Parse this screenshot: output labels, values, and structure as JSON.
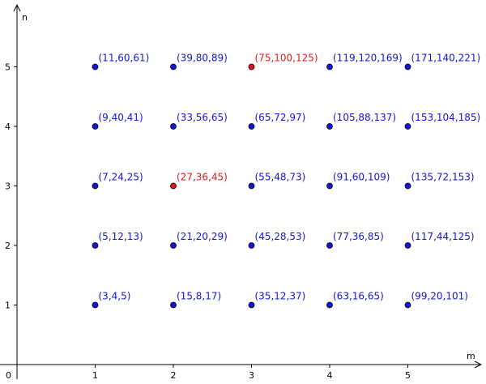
{
  "chart_data": {
    "type": "scatter",
    "title": "",
    "xlabel": "m",
    "ylabel": "n",
    "origin_label": "0",
    "xlim": [
      0,
      6
    ],
    "ylim": [
      0,
      6
    ],
    "x_ticks": [
      "1",
      "2",
      "3",
      "4",
      "5"
    ],
    "y_ticks": [
      "1",
      "2",
      "3",
      "4",
      "5"
    ],
    "grid": false,
    "colors": {
      "normal": "#1414d9",
      "highlight": "#e01818"
    },
    "points": [
      {
        "m": 1,
        "n": 1,
        "label": "(3,4,5)",
        "highlight": false
      },
      {
        "m": 2,
        "n": 1,
        "label": "(15,8,17)",
        "highlight": false
      },
      {
        "m": 3,
        "n": 1,
        "label": "(35,12,37)",
        "highlight": false
      },
      {
        "m": 4,
        "n": 1,
        "label": "(63,16,65)",
        "highlight": false
      },
      {
        "m": 5,
        "n": 1,
        "label": "(99,20,101)",
        "highlight": false
      },
      {
        "m": 1,
        "n": 2,
        "label": "(5,12,13)",
        "highlight": false
      },
      {
        "m": 2,
        "n": 2,
        "label": "(21,20,29)",
        "highlight": false
      },
      {
        "m": 3,
        "n": 2,
        "label": "(45,28,53)",
        "highlight": false
      },
      {
        "m": 4,
        "n": 2,
        "label": "(77,36,85)",
        "highlight": false
      },
      {
        "m": 5,
        "n": 2,
        "label": "(117,44,125)",
        "highlight": false
      },
      {
        "m": 1,
        "n": 3,
        "label": "(7,24,25)",
        "highlight": false
      },
      {
        "m": 2,
        "n": 3,
        "label": "(27,36,45)",
        "highlight": true
      },
      {
        "m": 3,
        "n": 3,
        "label": "(55,48,73)",
        "highlight": false
      },
      {
        "m": 4,
        "n": 3,
        "label": "(91,60,109)",
        "highlight": false
      },
      {
        "m": 5,
        "n": 3,
        "label": "(135,72,153)",
        "highlight": false
      },
      {
        "m": 1,
        "n": 4,
        "label": "(9,40,41)",
        "highlight": false
      },
      {
        "m": 2,
        "n": 4,
        "label": "(33,56,65)",
        "highlight": false
      },
      {
        "m": 3,
        "n": 4,
        "label": "(65,72,97)",
        "highlight": false
      },
      {
        "m": 4,
        "n": 4,
        "label": "(105,88,137)",
        "highlight": false
      },
      {
        "m": 5,
        "n": 4,
        "label": "(153,104,185)",
        "highlight": false
      },
      {
        "m": 1,
        "n": 5,
        "label": "(11,60,61)",
        "highlight": false
      },
      {
        "m": 2,
        "n": 5,
        "label": "(39,80,89)",
        "highlight": false
      },
      {
        "m": 3,
        "n": 5,
        "label": "(75,100,125)",
        "highlight": true
      },
      {
        "m": 4,
        "n": 5,
        "label": "(119,120,169)",
        "highlight": false
      },
      {
        "m": 5,
        "n": 5,
        "label": "(171,140,221)",
        "highlight": false
      }
    ]
  }
}
